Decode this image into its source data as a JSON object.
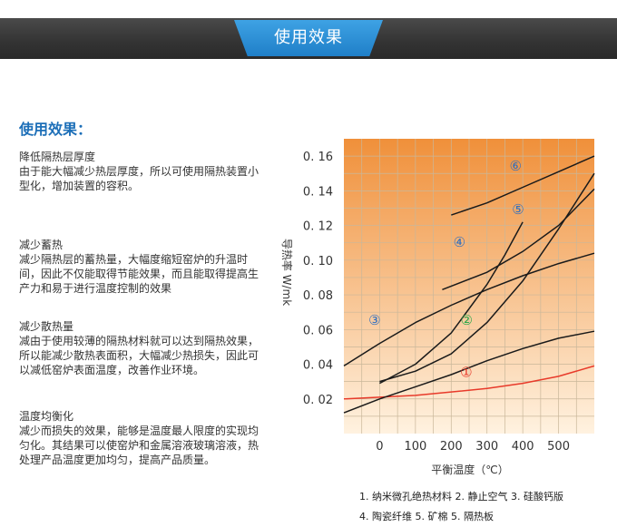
{
  "banner": {
    "title": "使用效果"
  },
  "section": {
    "title": "使用效果："
  },
  "effects": [
    {
      "heading": "降低隔热层厚度",
      "text": "由于能大幅减少热层厚度，所以可使用隔热装置小型化，增加装置的容积。"
    },
    {
      "heading": "减少蓄热",
      "text": "减少隔热层的蓄热量，大幅度缩短窑炉的升温时间，因此不仅能取得节能效果，而且能取得提高生产力和易于进行温度控制的效果"
    },
    {
      "heading": "减少散热量",
      "text": "减由于使用较薄的隔热材料就可以达到隔热效果，所以能减少散热表面积，大幅减少热损失，因此可以减低窑炉表面温度，改善作业环境。"
    },
    {
      "heading": "温度均衡化",
      "text": "减少而损失的效果，能够是温度最人限度的实现均匀化。其结果可以使窑炉和金属溶液玻璃溶液，热处理产品温度更加均匀，提高产品质量。"
    }
  ],
  "chart_data": {
    "type": "line",
    "xlabel": "平衡温度（℃）",
    "ylabel": "导热率 W/mk",
    "xlim": [
      -100,
      600
    ],
    "ylim": [
      0.0,
      0.17
    ],
    "xticks": [
      "0",
      "100",
      "200",
      "300",
      "400",
      "500"
    ],
    "yticks": [
      "0.02",
      "0.04",
      "0.06",
      "0.08",
      "0.10",
      "0.12",
      "0.14",
      "0.16"
    ],
    "colors": {
      "background_top": "#f0903a",
      "background_bottom": "#fff2e0",
      "grid": "#c9b79a",
      "curve": "#1a1a1a",
      "curve1": "#e83a2a",
      "marker1": "#e83a2a",
      "marker2": "#2aa84a",
      "marker_blue": "#2f6fc0"
    },
    "series": [
      {
        "marker": "①",
        "x": [
          -100,
          0,
          100,
          200,
          300,
          400,
          500,
          600
        ],
        "y": [
          0.02,
          0.021,
          0.022,
          0.024,
          0.026,
          0.029,
          0.033,
          0.039
        ]
      },
      {
        "marker": "②",
        "x": [
          -100,
          0,
          100,
          200,
          300,
          400,
          500,
          600
        ],
        "y": [
          0.012,
          0.02,
          0.027,
          0.034,
          0.042,
          0.049,
          0.055,
          0.059
        ]
      },
      {
        "marker": "③",
        "x": [
          -100,
          0,
          100,
          200,
          300,
          400,
          500,
          600
        ],
        "y": [
          0.039,
          0.052,
          0.064,
          0.074,
          0.083,
          0.091,
          0.098,
          0.104
        ]
      },
      {
        "marker": "④",
        "x": [
          0,
          100,
          200,
          300,
          350,
          400
        ],
        "y": [
          0.029,
          0.04,
          0.058,
          0.086,
          0.103,
          0.122
        ]
      },
      {
        "marker": "⑤",
        "x": [
          0,
          100,
          200,
          300,
          400,
          500,
          600
        ],
        "y": [
          0.03,
          0.036,
          0.046,
          0.064,
          0.088,
          0.118,
          0.15
        ]
      },
      {
        "marker": "⑥",
        "x": [
          200,
          300,
          400,
          500,
          600
        ],
        "y": [
          0.126,
          0.133,
          0.142,
          0.151,
          0.16
        ]
      }
    ],
    "extra_curves": [
      {
        "x": [
          175,
          300,
          400,
          500,
          600
        ],
        "y": [
          0.083,
          0.093,
          0.105,
          0.12,
          0.141
        ]
      }
    ],
    "labels": [
      {
        "text": "⑥",
        "x": 380,
        "y": 0.154
      },
      {
        "text": "⑤",
        "x": 387,
        "y": 0.129
      },
      {
        "text": "④",
        "x": 223,
        "y": 0.11
      },
      {
        "text": "③",
        "x": -14,
        "y": 0.065
      },
      {
        "text": "②",
        "x": 243,
        "y": 0.065
      },
      {
        "text": "①",
        "x": 242,
        "y": 0.035
      }
    ]
  },
  "legend": {
    "row1": "1. 纳米微孔绝热材料   2. 静止空气   3. 硅酸钙版",
    "row2": "4. 陶瓷纤维   5. 矿棉   5. 隔热板"
  }
}
